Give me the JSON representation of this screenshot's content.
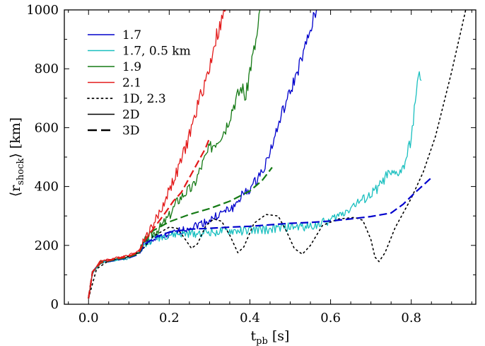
{
  "chart_data": {
    "type": "line",
    "xlabel": "t",
    "xlabel_sub": "pb",
    "xlabel_unit": " [s]",
    "ylabel": "⟨r",
    "ylabel_sub": "shock",
    "ylabel_unit": "⟩ [km]",
    "xlim": [
      -0.06,
      0.96
    ],
    "ylim": [
      0,
      1000
    ],
    "xticks": [
      0.0,
      0.2,
      0.4,
      0.6,
      0.8
    ],
    "xtick_labels": [
      "0.0",
      "0.2",
      "0.4",
      "0.6",
      "0.8"
    ],
    "yticks": [
      0,
      200,
      400,
      600,
      800,
      1000
    ],
    "ytick_labels": [
      "0",
      "200",
      "400",
      "600",
      "800",
      "1000"
    ],
    "grid": false,
    "legend_position": "top-left",
    "legend": [
      {
        "label": "1.7",
        "color": "#0000cc",
        "style": "solid"
      },
      {
        "label": "1.7,  0.5 km",
        "color": "#19bfbf",
        "style": "solid"
      },
      {
        "label": "1.9",
        "color": "#157a15",
        "style": "solid"
      },
      {
        "label": "2.1",
        "color": "#e31a1a",
        "style": "solid"
      },
      {
        "label": "1D,  2.3",
        "color": "#000000",
        "style": "dotted"
      },
      {
        "label": "2D",
        "color": "#000000",
        "style": "solid"
      },
      {
        "label": "3D",
        "color": "#000000",
        "style": "dashed"
      }
    ],
    "series": [
      {
        "group": "1.7",
        "dim": "2D",
        "color": "#0000cc",
        "style": "solid",
        "width": 1.3,
        "noise": 9,
        "seed": 1,
        "points": [
          [
            0,
            20
          ],
          [
            0.01,
            110
          ],
          [
            0.03,
            145
          ],
          [
            0.06,
            150
          ],
          [
            0.1,
            160
          ],
          [
            0.125,
            175
          ],
          [
            0.14,
            210
          ],
          [
            0.2,
            235
          ],
          [
            0.24,
            255
          ],
          [
            0.28,
            275
          ],
          [
            0.3,
            285
          ],
          [
            0.33,
            310
          ],
          [
            0.36,
            330
          ],
          [
            0.38,
            370
          ],
          [
            0.4,
            390
          ],
          [
            0.42,
            430
          ],
          [
            0.44,
            480
          ],
          [
            0.46,
            560
          ],
          [
            0.48,
            650
          ],
          [
            0.5,
            720
          ],
          [
            0.52,
            800
          ],
          [
            0.535,
            860
          ],
          [
            0.55,
            930
          ],
          [
            0.565,
            1000
          ]
        ]
      },
      {
        "group": "1.7, 0.5 km",
        "dim": "2D",
        "color": "#19bfbf",
        "style": "solid",
        "width": 1.3,
        "noise": 10,
        "seed": 2,
        "points": [
          [
            0,
            20
          ],
          [
            0.01,
            105
          ],
          [
            0.03,
            140
          ],
          [
            0.06,
            148
          ],
          [
            0.1,
            155
          ],
          [
            0.13,
            185
          ],
          [
            0.16,
            225
          ],
          [
            0.2,
            235
          ],
          [
            0.25,
            240
          ],
          [
            0.3,
            245
          ],
          [
            0.35,
            248
          ],
          [
            0.4,
            250
          ],
          [
            0.45,
            255
          ],
          [
            0.5,
            262
          ],
          [
            0.55,
            265
          ],
          [
            0.6,
            285
          ],
          [
            0.63,
            310
          ],
          [
            0.66,
            340
          ],
          [
            0.69,
            360
          ],
          [
            0.72,
            400
          ],
          [
            0.74,
            440
          ],
          [
            0.76,
            440
          ],
          [
            0.78,
            460
          ],
          [
            0.8,
            560
          ],
          [
            0.81,
            700
          ],
          [
            0.82,
            780
          ],
          [
            0.825,
            760
          ]
        ]
      },
      {
        "group": "1.9",
        "dim": "2D",
        "color": "#157a15",
        "style": "solid",
        "width": 1.3,
        "noise": 11,
        "seed": 3,
        "points": [
          [
            0,
            20
          ],
          [
            0.01,
            110
          ],
          [
            0.03,
            145
          ],
          [
            0.06,
            152
          ],
          [
            0.1,
            162
          ],
          [
            0.125,
            175
          ],
          [
            0.14,
            215
          ],
          [
            0.18,
            265
          ],
          [
            0.2,
            300
          ],
          [
            0.22,
            350
          ],
          [
            0.24,
            380
          ],
          [
            0.26,
            400
          ],
          [
            0.28,
            470
          ],
          [
            0.3,
            530
          ],
          [
            0.32,
            560
          ],
          [
            0.34,
            600
          ],
          [
            0.36,
            680
          ],
          [
            0.38,
            740
          ],
          [
            0.39,
            700
          ],
          [
            0.4,
            800
          ],
          [
            0.41,
            860
          ],
          [
            0.42,
            930
          ],
          [
            0.425,
            1000
          ]
        ]
      },
      {
        "group": "2.1",
        "dim": "2D",
        "color": "#e31a1a",
        "style": "solid",
        "width": 1.3,
        "noise": 11,
        "seed": 4,
        "points": [
          [
            0,
            20
          ],
          [
            0.01,
            110
          ],
          [
            0.03,
            148
          ],
          [
            0.06,
            155
          ],
          [
            0.1,
            168
          ],
          [
            0.125,
            182
          ],
          [
            0.14,
            225
          ],
          [
            0.16,
            270
          ],
          [
            0.18,
            320
          ],
          [
            0.2,
            390
          ],
          [
            0.22,
            450
          ],
          [
            0.24,
            530
          ],
          [
            0.26,
            620
          ],
          [
            0.28,
            720
          ],
          [
            0.3,
            800
          ],
          [
            0.31,
            880
          ],
          [
            0.32,
            920
          ],
          [
            0.33,
            960
          ],
          [
            0.34,
            1000
          ]
        ]
      },
      {
        "group": "1D, 2.3",
        "dim": "1D",
        "color": "#000000",
        "style": "dotted",
        "width": 1.6,
        "noise": 0,
        "seed": 0,
        "points": [
          [
            0,
            20
          ],
          [
            0.02,
            120
          ],
          [
            0.05,
            148
          ],
          [
            0.1,
            162
          ],
          [
            0.13,
            180
          ],
          [
            0.16,
            230
          ],
          [
            0.2,
            262
          ],
          [
            0.22,
            258
          ],
          [
            0.24,
            220
          ],
          [
            0.255,
            190
          ],
          [
            0.27,
            205
          ],
          [
            0.29,
            265
          ],
          [
            0.31,
            290
          ],
          [
            0.33,
            282
          ],
          [
            0.35,
            235
          ],
          [
            0.37,
            175
          ],
          [
            0.385,
            195
          ],
          [
            0.41,
            275
          ],
          [
            0.44,
            305
          ],
          [
            0.47,
            300
          ],
          [
            0.49,
            250
          ],
          [
            0.51,
            190
          ],
          [
            0.53,
            170
          ],
          [
            0.55,
            200
          ],
          [
            0.58,
            268
          ],
          [
            0.62,
            290
          ],
          [
            0.66,
            295
          ],
          [
            0.68,
            285
          ],
          [
            0.7,
            220
          ],
          [
            0.71,
            160
          ],
          [
            0.72,
            145
          ],
          [
            0.735,
            175
          ],
          [
            0.76,
            260
          ],
          [
            0.8,
            360
          ],
          [
            0.83,
            450
          ],
          [
            0.86,
            570
          ],
          [
            0.88,
            680
          ],
          [
            0.9,
            790
          ],
          [
            0.92,
            910
          ],
          [
            0.935,
            1000
          ]
        ]
      },
      {
        "group": "1.7",
        "dim": "3D",
        "color": "#0000cc",
        "style": "dashed",
        "width": 2.2,
        "noise": 0,
        "seed": 0,
        "points": [
          [
            0,
            20
          ],
          [
            0.01,
            110
          ],
          [
            0.03,
            140
          ],
          [
            0.06,
            148
          ],
          [
            0.1,
            158
          ],
          [
            0.125,
            170
          ],
          [
            0.14,
            205
          ],
          [
            0.17,
            230
          ],
          [
            0.2,
            245
          ],
          [
            0.25,
            255
          ],
          [
            0.3,
            258
          ],
          [
            0.35,
            262
          ],
          [
            0.4,
            265
          ],
          [
            0.45,
            270
          ],
          [
            0.5,
            275
          ],
          [
            0.55,
            278
          ],
          [
            0.6,
            283
          ],
          [
            0.65,
            290
          ],
          [
            0.7,
            298
          ],
          [
            0.75,
            310
          ],
          [
            0.78,
            340
          ],
          [
            0.81,
            380
          ],
          [
            0.83,
            405
          ],
          [
            0.85,
            430
          ]
        ]
      },
      {
        "group": "1.9",
        "dim": "3D",
        "color": "#157a15",
        "style": "dashed",
        "width": 2.2,
        "noise": 0,
        "seed": 0,
        "points": [
          [
            0,
            20
          ],
          [
            0.01,
            110
          ],
          [
            0.03,
            140
          ],
          [
            0.06,
            150
          ],
          [
            0.1,
            160
          ],
          [
            0.125,
            173
          ],
          [
            0.14,
            215
          ],
          [
            0.16,
            250
          ],
          [
            0.2,
            280
          ],
          [
            0.25,
            305
          ],
          [
            0.3,
            325
          ],
          [
            0.35,
            350
          ],
          [
            0.4,
            385
          ],
          [
            0.43,
            420
          ],
          [
            0.455,
            465
          ]
        ]
      },
      {
        "group": "2.1",
        "dim": "3D",
        "color": "#e31a1a",
        "style": "dashed",
        "width": 2.2,
        "noise": 0,
        "seed": 0,
        "points": [
          [
            0,
            20
          ],
          [
            0.01,
            110
          ],
          [
            0.03,
            142
          ],
          [
            0.06,
            152
          ],
          [
            0.1,
            163
          ],
          [
            0.125,
            178
          ],
          [
            0.14,
            218
          ],
          [
            0.16,
            255
          ],
          [
            0.19,
            310
          ],
          [
            0.21,
            350
          ],
          [
            0.23,
            380
          ],
          [
            0.25,
            430
          ],
          [
            0.27,
            480
          ],
          [
            0.29,
            530
          ],
          [
            0.3,
            565
          ]
        ]
      }
    ]
  }
}
